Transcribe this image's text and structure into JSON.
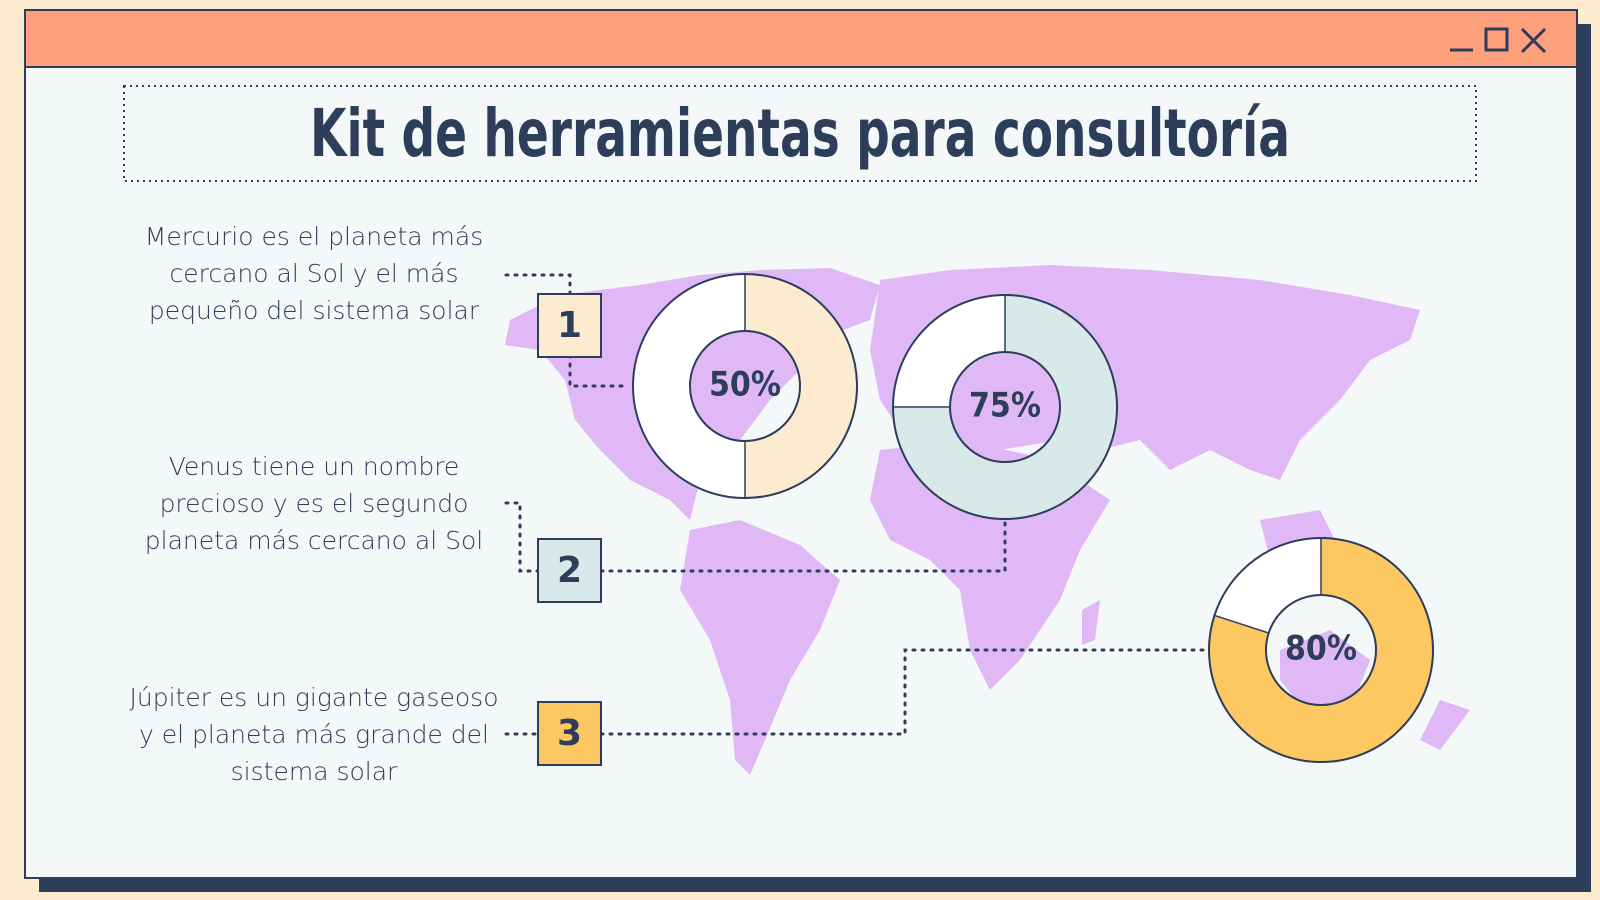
{
  "title": "Kit de herramientas para consultoría",
  "items": [
    {
      "number": "1",
      "lines": [
        "Mercurio es el planeta más",
        "cercano al Sol y el más",
        "pequeño del sistema solar"
      ],
      "value": 50,
      "value_label": "50%",
      "color": "#fdebd0"
    },
    {
      "number": "2",
      "lines": [
        "Venus tiene un nombre",
        "precioso y es el segundo",
        "planeta más cercano al Sol"
      ],
      "value": 75,
      "value_label": "75%",
      "color": "#d9e8e8"
    },
    {
      "number": "3",
      "lines": [
        "Júpiter es un gigante gaseoso",
        "y el planeta más grande del",
        "sistema solar"
      ],
      "value": 80,
      "value_label": "80%",
      "color": "#fdc862"
    }
  ]
}
